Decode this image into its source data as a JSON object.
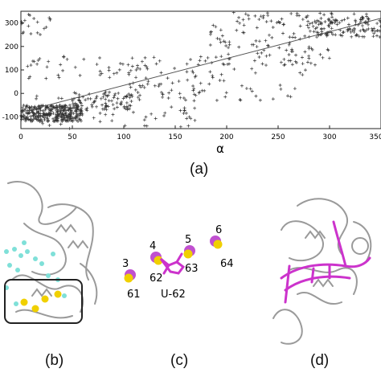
{
  "chart_data": {
    "type": "scatter",
    "title": "",
    "xlabel": "α",
    "ylabel": "",
    "xlim": [
      0,
      350
    ],
    "ylim": [
      -150,
      350
    ],
    "xticks": [
      "0",
      "50",
      "100",
      "150",
      "200",
      "250",
      "300",
      "350"
    ],
    "yticks": [
      "-100",
      "0",
      "100",
      "200",
      "300"
    ],
    "grid": false,
    "trend_line": {
      "x": [
        0,
        350
      ],
      "y": [
        -80,
        320
      ]
    },
    "marker": "+",
    "clusters": [
      {
        "x": [
          0,
          60
        ],
        "y": [
          -120,
          -50
        ],
        "n": 320
      },
      {
        "x": [
          50,
          110
        ],
        "y": [
          -70,
          10
        ],
        "n": 70
      },
      {
        "x": [
          100,
          180
        ],
        "y": [
          -20,
          60
        ],
        "n": 40
      },
      {
        "x": [
          5,
          180
        ],
        "y": [
          60,
          160
        ],
        "n": 70
      },
      {
        "x": [
          10,
          175
        ],
        "y": [
          -150,
          0
        ],
        "n": 70
      },
      {
        "x": [
          0,
          30
        ],
        "y": [
          250,
          340
        ],
        "n": 18
      },
      {
        "x": [
          180,
          300
        ],
        "y": [
          120,
          300
        ],
        "n": 110
      },
      {
        "x": [
          280,
          350
        ],
        "y": [
          240,
          320
        ],
        "n": 110
      },
      {
        "x": [
          180,
          280
        ],
        "y": [
          -30,
          110
        ],
        "n": 30
      },
      {
        "x": [
          200,
          340
        ],
        "y": [
          300,
          345
        ],
        "n": 50
      }
    ]
  },
  "panels": {
    "a": "(a)",
    "b": "(b)",
    "c": "(c)",
    "d": "(d)"
  },
  "panel_c": {
    "ions": [
      {
        "id": "3",
        "res": "61"
      },
      {
        "id": "4",
        "res": "62"
      },
      {
        "id": "5",
        "res": "63"
      },
      {
        "id": "6",
        "res": "64"
      }
    ],
    "nucleotide": "U-62"
  },
  "colors": {
    "points": "#333333",
    "trend": "#555555",
    "ion_yellow": "#f0d000",
    "ion_magenta": "#c050d0",
    "rna": "#cc33cc",
    "protein": "#9a9a9a",
    "water": "#7fe0d8"
  }
}
